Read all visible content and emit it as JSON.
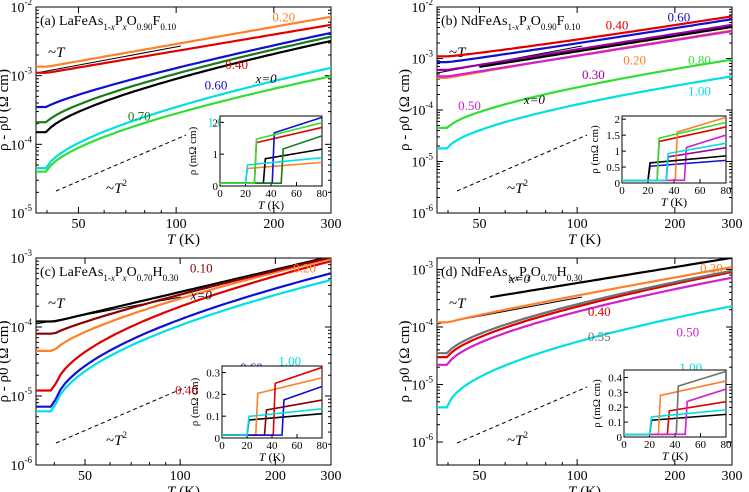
{
  "figure": {
    "panels": [
      {
        "id": "a",
        "title": "(a) LaFeAs$_{1-x}$P$_x$O$_{0.90}$F$_{0.10}$",
        "title_parts": [
          [
            "(a) LaFeAs",
            "n"
          ],
          [
            "1-",
            "s"
          ],
          [
            "x",
            "si"
          ],
          [
            "P",
            "n"
          ],
          [
            "x",
            "si"
          ],
          [
            "O",
            "n"
          ],
          [
            "0.90",
            "s"
          ],
          [
            "F",
            "n"
          ],
          [
            "0.10",
            "s"
          ]
        ],
        "ylabel": "ρ - ρ0 (Ω cm)",
        "xlabel": "T (K)",
        "y_decades": [
          -5,
          -2
        ],
        "y_tick_labels": [
          "10^-5",
          "10^-4",
          "10^-3",
          "10^-2"
        ],
        "x_ticks": [
          50,
          100,
          200,
          300
        ],
        "x_range": [
          37,
          300
        ],
        "guides": [
          {
            "label": "~T",
            "slope": 1
          },
          {
            "label": "~T2",
            "slope": 2
          }
        ],
        "series": [
          {
            "name": "0.20",
            "color": "#ff7f2a",
            "y0": 0.00135,
            "y1": 0.0072,
            "exp": 1.0
          },
          {
            "name": "0.40",
            "color": "#e00000",
            "y0": 0.0011,
            "y1": 0.0055,
            "exp": 1.0
          },
          {
            "name": "x=0",
            "color": "#000000",
            "y0": 0.00015,
            "y1": 0.0032,
            "exp": 1.55
          },
          {
            "name": "0.60",
            "color": "#1010d0",
            "y0": 0.00035,
            "y1": 0.0042,
            "exp": 1.25
          },
          {
            "name": "0.70",
            "color": "#1a7a1a",
            "y0": 0.00021,
            "y1": 0.0037,
            "exp": 1.45
          },
          {
            "name": "1.00",
            "color": "#00e0e0",
            "y0": 4.5e-05,
            "y1": 0.0013,
            "exp": 1.7
          },
          {
            "name": "0.80",
            "color": "#33dd33",
            "y0": 4e-05,
            "y1": 0.00098,
            "exp": 1.7
          }
        ],
        "inset": {
          "ylabel": "ρ (mΩ cm)",
          "xlabel": "T (K)",
          "x_ticks": [
            0,
            20,
            40,
            60,
            80
          ],
          "y_ticks": [
            0,
            1,
            2
          ],
          "ylim": [
            0,
            2.2
          ]
        }
      },
      {
        "id": "b",
        "title": "(b) NdFeAs$_{1-x}$P$_x$O$_{0.90}$F$_{0.10}$",
        "title_parts": [
          [
            "(b) NdFeAs",
            "n"
          ],
          [
            "1-",
            "s"
          ],
          [
            "x",
            "si"
          ],
          [
            "P",
            "n"
          ],
          [
            "x",
            "si"
          ],
          [
            "O",
            "n"
          ],
          [
            "0.90",
            "s"
          ],
          [
            "F",
            "n"
          ],
          [
            "0.10",
            "s"
          ]
        ],
        "ylabel": "ρ - ρ0 (Ω cm)",
        "xlabel": "T (K)",
        "y_decades": [
          -6,
          -2
        ],
        "y_tick_labels": [
          "10^-6",
          "10^-5",
          "10^-4",
          "10^-3",
          "10^-2"
        ],
        "x_ticks": [
          50,
          100,
          200,
          300
        ],
        "x_range": [
          37,
          300
        ],
        "guides": [
          {
            "label": "~T",
            "slope": 1
          },
          {
            "label": "~T2",
            "slope": 2
          }
        ],
        "series": [
          {
            "name": "0.60",
            "color": "#1010d0",
            "y0": 0.00085,
            "y1": 0.0058,
            "exp": 0.95
          },
          {
            "name": "0.40",
            "color": "#e00000",
            "y0": 0.0011,
            "y1": 0.0066,
            "exp": 0.9
          },
          {
            "name": "0.30",
            "color": "#a000a0",
            "y0": 0.0006,
            "y1": 0.0045,
            "exp": 1.0
          },
          {
            "name": "0.20",
            "color": "#ff7f2a",
            "y0": 0.00042,
            "y1": 0.0035,
            "exp": 1.05
          },
          {
            "name": "0.50",
            "color": "#d020d0",
            "y0": 0.00045,
            "y1": 0.0034,
            "exp": 1.0
          },
          {
            "name": "x=0",
            "color": "#000000",
            "y0": 0.00055,
            "y1": 0.0041,
            "exp": 1.0
          },
          {
            "name": "0.80",
            "color": "#33dd33",
            "y0": 4.5e-05,
            "y1": 0.00095,
            "exp": 1.6
          },
          {
            "name": "1.00",
            "color": "#00e0e0",
            "y0": 1.8e-05,
            "y1": 0.00045,
            "exp": 1.7
          }
        ],
        "inset": {
          "ylabel": "ρ (mΩ cm)",
          "xlabel": "T (K)",
          "x_ticks": [
            0,
            20,
            40,
            60,
            80
          ],
          "y_ticks": [
            0,
            0.5,
            1,
            1.5,
            2
          ],
          "ylim": [
            0,
            2.1
          ]
        }
      },
      {
        "id": "c",
        "title": "(c) LaFeAs$_{1-x}$P$_x$O$_{0.70}$H$_{0.30}$",
        "title_parts": [
          [
            "(c) LaFeAs",
            "n"
          ],
          [
            "1-",
            "s"
          ],
          [
            "x",
            "si"
          ],
          [
            "P",
            "n"
          ],
          [
            "x",
            "si"
          ],
          [
            "O",
            "n"
          ],
          [
            "0.70",
            "s"
          ],
          [
            "H",
            "n"
          ],
          [
            "0.30",
            "s"
          ]
        ],
        "ylabel": "ρ - ρ0 (Ω cm)",
        "xlabel": "T (K)",
        "y_decades": [
          -6,
          -3
        ],
        "y_tick_labels": [
          "10^-6",
          "10^-5",
          "10^-4",
          "10^-3"
        ],
        "x_ticks": [
          50,
          100,
          200,
          300
        ],
        "x_range": [
          35,
          300
        ],
        "guides": [
          {
            "label": "~T",
            "slope": 1
          },
          {
            "label": "~T2",
            "slope": 2
          }
        ],
        "series": [
          {
            "name": "x=0",
            "color": "#000000",
            "y0": 0.00012,
            "y1": 0.00105,
            "exp": 1.0
          },
          {
            "name": "0.20",
            "color": "#ff7f2a",
            "y0": 4.5e-05,
            "y1": 0.00098,
            "exp": 1.45
          },
          {
            "name": "0.10",
            "color": "#8b0000",
            "y0": 8e-05,
            "y1": 0.00102,
            "exp": 1.2
          },
          {
            "name": "0.40",
            "color": "#e00000",
            "y0": 1.2e-05,
            "y1": 0.0009,
            "exp": 2.0
          },
          {
            "name": "0.60",
            "color": "#1010d0",
            "y0": 7e-06,
            "y1": 0.0006,
            "exp": 2.05
          },
          {
            "name": "1.00",
            "color": "#00e0e0",
            "y0": 6e-06,
            "y1": 0.00048,
            "exp": 2.05
          }
        ],
        "inset": {
          "ylabel": "ρ (mΩ cm)",
          "xlabel": "T (K)",
          "x_ticks": [
            0,
            20,
            40,
            60,
            80
          ],
          "y_ticks": [
            0,
            0.1,
            0.2,
            0.3
          ],
          "ylim": [
            0,
            0.33
          ]
        }
      },
      {
        "id": "d",
        "title": "(d) NdFeAs$_{1-x}$P$_x$O$_{0.70}$H$_{0.30}$",
        "title_parts": [
          [
            "(d) NdFeAs",
            "n"
          ],
          [
            "1-",
            "s"
          ],
          [
            "x",
            "si"
          ],
          [
            "P",
            "n"
          ],
          [
            "x",
            "si"
          ],
          [
            "O",
            "n"
          ],
          [
            "0.70",
            "s"
          ],
          [
            "H",
            "n"
          ],
          [
            "0.30",
            "s"
          ]
        ],
        "ylabel": "ρ - ρ0 (Ω cm)",
        "xlabel": "T (K)",
        "y_decades": [
          -6.4,
          -2.8
        ],
        "y_tick_labels": [
          "10^-6",
          "10^-5",
          "10^-4",
          "10^-3"
        ],
        "x_ticks": [
          50,
          100,
          200,
          300
        ],
        "x_range": [
          37,
          300
        ],
        "guides": [
          {
            "label": "~T",
            "slope": 1
          },
          {
            "label": "~T2",
            "slope": 2
          }
        ],
        "series": [
          {
            "name": "x=0",
            "color": "#000000",
            "y0": 0.00025,
            "y1": 0.0016,
            "exp": 1.0
          },
          {
            "name": "0.20",
            "color": "#ff7f2a",
            "y0": 0.00012,
            "y1": 0.0011,
            "exp": 1.1
          },
          {
            "name": "0.40",
            "color": "#e00000",
            "y0": 3e-05,
            "y1": 0.0009,
            "exp": 1.6
          },
          {
            "name": "0.55",
            "color": "#707070",
            "y0": 3.5e-05,
            "y1": 0.00095,
            "exp": 1.6
          },
          {
            "name": "0.50",
            "color": "#d020d0",
            "y0": 2.2e-05,
            "y1": 0.00072,
            "exp": 1.7
          },
          {
            "name": "1.00",
            "color": "#00e0e0",
            "y0": 4e-06,
            "y1": 0.00023,
            "exp": 2.0
          }
        ],
        "inset": {
          "ylabel": "ρ (mΩ cm)",
          "xlabel": "T (K)",
          "x_ticks": [
            0,
            20,
            40,
            60,
            80
          ],
          "y_ticks": [
            0,
            0.1,
            0.2,
            0.3,
            0.4
          ],
          "ylim": [
            0,
            0.45
          ]
        }
      }
    ]
  },
  "chart_data": [
    {
      "type": "line",
      "title": "(a) LaFeAs1-xPxO0.90F0.10",
      "xlabel": "T (K)",
      "ylabel": "ρ - ρ0 (Ω cm)",
      "xscale": "log",
      "yscale": "log",
      "xlim": [
        37,
        300
      ],
      "ylim": [
        1e-05,
        0.01
      ],
      "series": [
        {
          "name": "x=0",
          "x": [
            40,
            300
          ],
          "values": [
            0.00015,
            0.0032
          ]
        },
        {
          "name": "0.20",
          "x": [
            40,
            300
          ],
          "values": [
            0.00135,
            0.0072
          ]
        },
        {
          "name": "0.40",
          "x": [
            40,
            300
          ],
          "values": [
            0.0011,
            0.0055
          ]
        },
        {
          "name": "0.60",
          "x": [
            40,
            300
          ],
          "values": [
            0.00035,
            0.0042
          ]
        },
        {
          "name": "0.70",
          "x": [
            40,
            300
          ],
          "values": [
            0.00021,
            0.0037
          ]
        },
        {
          "name": "0.80",
          "x": [
            40,
            300
          ],
          "values": [
            4e-05,
            0.00098
          ]
        },
        {
          "name": "1.00",
          "x": [
            40,
            300
          ],
          "values": [
            4.5e-05,
            0.0013
          ]
        }
      ]
    },
    {
      "type": "line",
      "title": "(b) NdFeAs1-xPxO0.90F0.10",
      "xlabel": "T (K)",
      "ylabel": "ρ - ρ0 (Ω cm)",
      "xscale": "log",
      "yscale": "log",
      "xlim": [
        37,
        300
      ],
      "ylim": [
        1e-06,
        0.01
      ],
      "series": [
        {
          "name": "x=0",
          "x": [
            50,
            300
          ],
          "values": [
            0.00055,
            0.0041
          ]
        },
        {
          "name": "0.20",
          "x": [
            40,
            300
          ],
          "values": [
            0.00042,
            0.0035
          ]
        },
        {
          "name": "0.30",
          "x": [
            40,
            300
          ],
          "values": [
            0.0006,
            0.0045
          ]
        },
        {
          "name": "0.40",
          "x": [
            40,
            300
          ],
          "values": [
            0.0011,
            0.0066
          ]
        },
        {
          "name": "0.50",
          "x": [
            40,
            300
          ],
          "values": [
            0.00045,
            0.0034
          ]
        },
        {
          "name": "0.60",
          "x": [
            40,
            300
          ],
          "values": [
            0.00085,
            0.0058
          ]
        },
        {
          "name": "0.80",
          "x": [
            40,
            300
          ],
          "values": [
            4.5e-05,
            0.00095
          ]
        },
        {
          "name": "1.00",
          "x": [
            40,
            300
          ],
          "values": [
            1.8e-05,
            0.00045
          ]
        }
      ]
    },
    {
      "type": "line",
      "title": "(c) LaFeAs1-xPxO0.70H0.30",
      "xlabel": "T (K)",
      "ylabel": "ρ - ρ0 (Ω cm)",
      "xscale": "log",
      "yscale": "log",
      "xlim": [
        35,
        300
      ],
      "ylim": [
        1e-06,
        0.001
      ],
      "series": [
        {
          "name": "x=0",
          "x": [
            40,
            300
          ],
          "values": [
            0.00012,
            0.00105
          ]
        },
        {
          "name": "0.10",
          "x": [
            40,
            300
          ],
          "values": [
            8e-05,
            0.00102
          ]
        },
        {
          "name": "0.20",
          "x": [
            40,
            300
          ],
          "values": [
            4.5e-05,
            0.00098
          ]
        },
        {
          "name": "0.40",
          "x": [
            40,
            300
          ],
          "values": [
            1.2e-05,
            0.0009
          ]
        },
        {
          "name": "0.60",
          "x": [
            40,
            300
          ],
          "values": [
            7e-06,
            0.0006
          ]
        },
        {
          "name": "1.00",
          "x": [
            40,
            300
          ],
          "values": [
            6e-06,
            0.00048
          ]
        }
      ]
    },
    {
      "type": "line",
      "title": "(d) NdFeAs1-xPxO0.70H0.30",
      "xlabel": "T (K)",
      "ylabel": "ρ - ρ0 (Ω cm)",
      "xscale": "log",
      "yscale": "log",
      "xlim": [
        37,
        300
      ],
      "ylim": [
        4e-07,
        0.0016
      ],
      "series": [
        {
          "name": "x=0",
          "x": [
            55,
            300
          ],
          "values": [
            0.00025,
            0.0016
          ]
        },
        {
          "name": "0.20",
          "x": [
            40,
            300
          ],
          "values": [
            0.00012,
            0.0011
          ]
        },
        {
          "name": "0.40",
          "x": [
            40,
            300
          ],
          "values": [
            3e-05,
            0.0009
          ]
        },
        {
          "name": "0.50",
          "x": [
            40,
            300
          ],
          "values": [
            2.2e-05,
            0.00072
          ]
        },
        {
          "name": "0.55",
          "x": [
            40,
            300
          ],
          "values": [
            3.5e-05,
            0.00095
          ]
        },
        {
          "name": "1.00",
          "x": [
            40,
            300
          ],
          "values": [
            4e-06,
            0.00023
          ]
        }
      ]
    }
  ]
}
